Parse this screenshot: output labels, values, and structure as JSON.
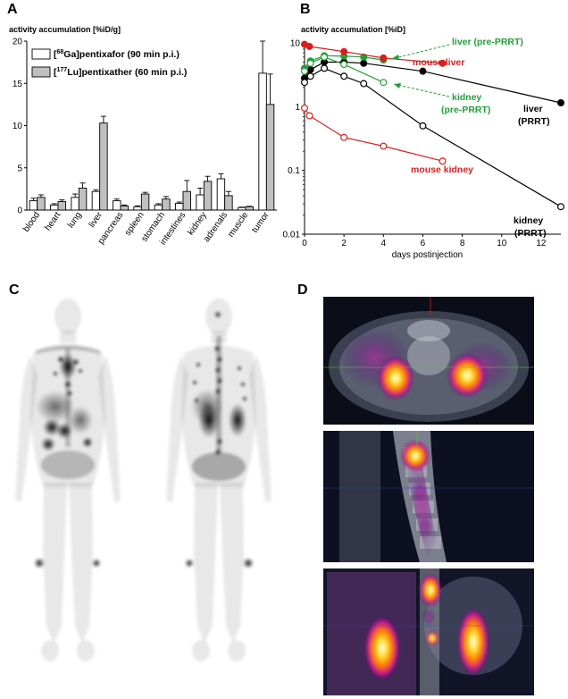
{
  "panels": {
    "a": {
      "letter": "A",
      "ylabel": "activity accumulation [%iD/g]"
    },
    "b": {
      "letter": "B",
      "ylabel": "activity accumulation [%iD]"
    },
    "c": {
      "letter": "C"
    },
    "d": {
      "letter": "D"
    }
  },
  "colors": {
    "white_bar": "#ffffff",
    "gray_bar": "#c0c0c0",
    "black": "#000000",
    "red": "#d62020",
    "green": "#22a03a"
  },
  "chart_data": [
    {
      "type": "bar",
      "ylabel": "activity accumulation [%iD/g]",
      "ylim": [
        0,
        20
      ],
      "yticks": [
        "0",
        "5",
        "10",
        "15",
        "20"
      ],
      "categories": [
        "blood",
        "heart",
        "lung",
        "liver",
        "pancreas",
        "spleen",
        "stomach",
        "intestines",
        "kidney",
        "adrenals",
        "muscle",
        "tumor"
      ],
      "legend_position": "top-left",
      "series": [
        {
          "name_pre": "[",
          "name_sup": "68",
          "name_post": "Ga]pentixafor (90 min p.i.)",
          "color": "#ffffff",
          "values": [
            1.1,
            0.6,
            1.5,
            2.2,
            1.1,
            0.4,
            0.6,
            0.8,
            1.8,
            3.7,
            0.3,
            16.2
          ],
          "errors": [
            0.3,
            0.15,
            0.4,
            0.2,
            0.2,
            0.1,
            0.15,
            0.15,
            0.8,
            0.6,
            0.05,
            3.8
          ]
        },
        {
          "name_pre": "[",
          "name_sup": "177",
          "name_post": "Lu]pentixather (60 min p.i.)",
          "color": "#c0c0c0",
          "values": [
            1.5,
            1.0,
            2.6,
            10.3,
            0.5,
            1.9,
            1.3,
            2.2,
            3.4,
            1.7,
            0.4,
            12.5
          ],
          "errors": [
            0.3,
            0.2,
            0.6,
            0.8,
            0.1,
            0.2,
            0.3,
            1.3,
            0.6,
            0.5,
            0.05,
            3.6
          ]
        }
      ]
    },
    {
      "type": "line",
      "ylabel": "activity accumulation [%iD]",
      "xlabel": "days postinjection",
      "yscale": "log",
      "xlim": [
        0,
        13
      ],
      "ylim": [
        0.01,
        10
      ],
      "xticks": [
        "0",
        "2",
        "4",
        "6",
        "8",
        "10",
        "12"
      ],
      "yticks": [
        "0.01",
        "0.1",
        "1",
        "10"
      ],
      "series": [
        {
          "id": "liver-prrt",
          "color": "#000000",
          "filled": true,
          "x": [
            0,
            0.3,
            1,
            2,
            3,
            6,
            13
          ],
          "y": [
            2.8,
            3.8,
            5.0,
            5.0,
            4.8,
            3.6,
            1.15
          ]
        },
        {
          "id": "kidney-prrt",
          "color": "#000000",
          "filled": false,
          "x": [
            0,
            0.3,
            1,
            2,
            3,
            6,
            13
          ],
          "y": [
            2.4,
            3.0,
            4.0,
            3.0,
            2.3,
            0.5,
            0.027
          ]
        },
        {
          "id": "liver-pre",
          "color": "#22a03a",
          "filled": true,
          "x": [
            0,
            0.3,
            1,
            2,
            3,
            4
          ],
          "y": [
            4.0,
            5.2,
            6.3,
            6.2,
            6.0,
            5.4
          ]
        },
        {
          "id": "kidney-pre",
          "color": "#22a03a",
          "filled": false,
          "x": [
            0,
            0.3,
            1,
            2,
            4
          ],
          "y": [
            3.6,
            4.8,
            6.0,
            4.6,
            2.4
          ]
        },
        {
          "id": "mouse-liver",
          "color": "#d62020",
          "filled": true,
          "x": [
            0,
            0.25,
            2,
            4,
            7
          ],
          "y": [
            9.5,
            8.8,
            7.3,
            5.8,
            4.8
          ]
        },
        {
          "id": "mouse-kidney",
          "color": "#d62020",
          "filled": false,
          "x": [
            0,
            0.25,
            2,
            4,
            7
          ],
          "y": [
            0.95,
            0.72,
            0.33,
            0.24,
            0.14
          ]
        }
      ],
      "annotations": {
        "liver_pre": "liver (pre-PRRT)",
        "mouse_liver": "mouse liver",
        "kidney_pre_1": "kidney",
        "kidney_pre_2": "(pre-PRRT)",
        "liver_prrt_1": "liver",
        "liver_prrt_2": "(PRRT)",
        "mouse_kidney": "mouse kidney",
        "kidney_prrt_1": "kidney",
        "kidney_prrt_2": "(PRRT)"
      }
    }
  ]
}
